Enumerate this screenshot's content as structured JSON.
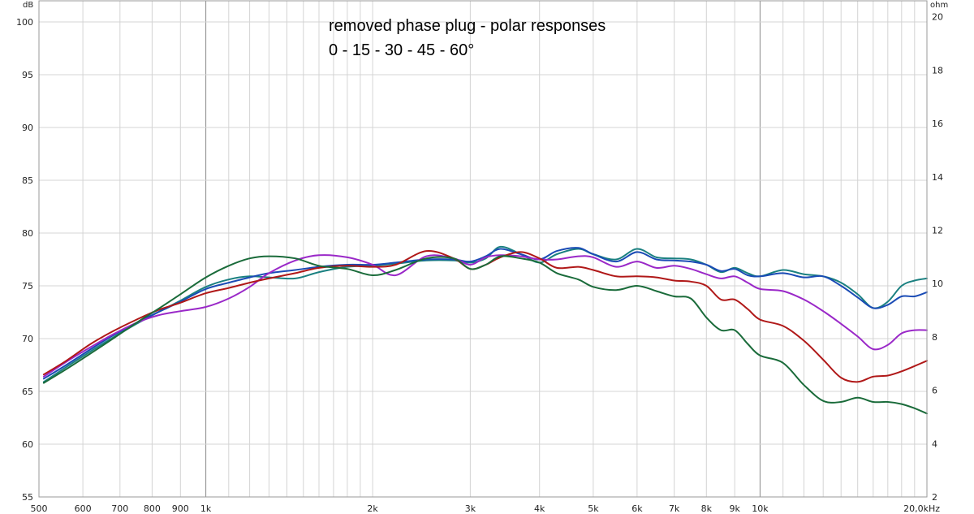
{
  "chart_data": {
    "type": "line",
    "title": "removed phase plug - polar responses",
    "subtitle": "0 - 15 - 30 - 45 - 60°",
    "ylabel": "dB",
    "y2label": "ohm",
    "xscale": "log",
    "xlim": [
      500,
      20000
    ],
    "ylim": [
      55,
      102
    ],
    "y2lim": [
      2,
      20.6
    ],
    "grid": true,
    "x_ticks": [
      {
        "v": 500,
        "label": "500"
      },
      {
        "v": 600,
        "label": "600"
      },
      {
        "v": 700,
        "label": "700"
      },
      {
        "v": 800,
        "label": "800"
      },
      {
        "v": 900,
        "label": "900"
      },
      {
        "v": 1000,
        "label": "1k"
      },
      {
        "v": 2000,
        "label": "2k"
      },
      {
        "v": 3000,
        "label": "3k"
      },
      {
        "v": 4000,
        "label": "4k"
      },
      {
        "v": 5000,
        "label": "5k"
      },
      {
        "v": 6000,
        "label": "6k"
      },
      {
        "v": 7000,
        "label": "7k"
      },
      {
        "v": 8000,
        "label": "8k"
      },
      {
        "v": 9000,
        "label": "9k"
      },
      {
        "v": 10000,
        "label": "10k"
      },
      {
        "v": 20000,
        "label": "20,0kHz"
      }
    ],
    "x_minor": [
      1100,
      1200,
      1300,
      1400,
      1500,
      1600,
      1700,
      1800,
      1900,
      11000,
      12000,
      13000,
      14000,
      15000,
      16000,
      17000,
      18000,
      19000
    ],
    "y_ticks": [
      55,
      60,
      65,
      70,
      75,
      80,
      85,
      90,
      95,
      100
    ],
    "y2_ticks": [
      2,
      4,
      6,
      8,
      10,
      12,
      14,
      16,
      18,
      20
    ],
    "x": [
      510,
      560,
      620,
      680,
      750,
      820,
      900,
      1000,
      1100,
      1200,
      1300,
      1450,
      1600,
      1800,
      2000,
      2200,
      2500,
      2800,
      3000,
      3200,
      3400,
      3700,
      4000,
      4300,
      4700,
      5000,
      5500,
      6000,
      6500,
      7000,
      7500,
      8000,
      8500,
      9000,
      9500,
      10000,
      11000,
      12000,
      13000,
      14000,
      15000,
      16000,
      17000,
      18000,
      19000,
      20000
    ],
    "series": [
      {
        "color": "#1a8080",
        "values": [
          65.9,
          67.3,
          68.8,
          70.1,
          71.4,
          72.5,
          73.6,
          74.9,
          75.6,
          75.9,
          75.8,
          75.7,
          76.3,
          76.8,
          76.9,
          77.1,
          77.4,
          77.4,
          77.2,
          77.6,
          78.7,
          78.0,
          77.2,
          78.0,
          78.5,
          78.0,
          77.5,
          78.5,
          77.7,
          77.6,
          77.5,
          77.0,
          76.3,
          76.7,
          76.2,
          75.9,
          76.5,
          76.1,
          75.9,
          75.3,
          74.2,
          72.9,
          73.5,
          75.0,
          75.5,
          75.7
        ]
      },
      {
        "color": "#1a4bb5",
        "values": [
          66.2,
          67.5,
          69.0,
          70.3,
          71.5,
          72.5,
          73.5,
          74.7,
          75.3,
          75.8,
          76.2,
          76.5,
          76.8,
          77.0,
          77.0,
          77.2,
          77.5,
          77.5,
          77.3,
          77.8,
          78.5,
          78.0,
          77.5,
          78.3,
          78.6,
          78.0,
          77.3,
          78.2,
          77.5,
          77.4,
          77.3,
          77.0,
          76.4,
          76.6,
          76.0,
          75.9,
          76.2,
          75.8,
          75.9,
          75.0,
          73.9,
          72.9,
          73.2,
          74.0,
          74.0,
          74.4
        ]
      },
      {
        "color": "#9a28c8",
        "values": [
          66.4,
          67.8,
          69.2,
          70.4,
          71.5,
          72.2,
          72.6,
          73.0,
          73.8,
          74.9,
          76.2,
          77.4,
          77.9,
          77.7,
          77.0,
          76.0,
          77.8,
          77.6,
          77.0,
          77.7,
          77.9,
          77.8,
          77.5,
          77.5,
          77.8,
          77.7,
          76.8,
          77.3,
          76.7,
          76.9,
          76.6,
          76.1,
          75.7,
          75.9,
          75.3,
          74.7,
          74.5,
          73.7,
          72.6,
          71.4,
          70.2,
          69.0,
          69.4,
          70.5,
          70.8,
          70.8
        ]
      },
      {
        "color": "#b01818",
        "values": [
          66.6,
          67.9,
          69.5,
          70.7,
          71.8,
          72.7,
          73.4,
          74.3,
          74.8,
          75.3,
          75.7,
          76.2,
          76.7,
          76.9,
          76.8,
          77.0,
          78.3,
          77.6,
          76.6,
          77.0,
          77.7,
          78.2,
          77.6,
          76.7,
          76.8,
          76.5,
          75.9,
          75.9,
          75.8,
          75.5,
          75.4,
          75.0,
          73.7,
          73.7,
          72.8,
          71.8,
          71.2,
          69.8,
          68.0,
          66.3,
          65.9,
          66.4,
          66.5,
          66.9,
          67.4,
          67.9
        ]
      },
      {
        "color": "#1a6b3a",
        "values": [
          65.8,
          67.1,
          68.6,
          70.0,
          71.5,
          72.8,
          74.2,
          75.8,
          76.9,
          77.6,
          77.8,
          77.6,
          76.9,
          76.6,
          76.0,
          76.5,
          77.6,
          77.6,
          76.6,
          77.0,
          77.8,
          77.6,
          77.2,
          76.2,
          75.6,
          74.9,
          74.6,
          75.0,
          74.5,
          74.0,
          73.8,
          72.0,
          70.8,
          70.8,
          69.5,
          68.4,
          67.7,
          65.6,
          64.1,
          64.0,
          64.4,
          64.0,
          64.0,
          63.8,
          63.4,
          62.9
        ]
      }
    ]
  }
}
